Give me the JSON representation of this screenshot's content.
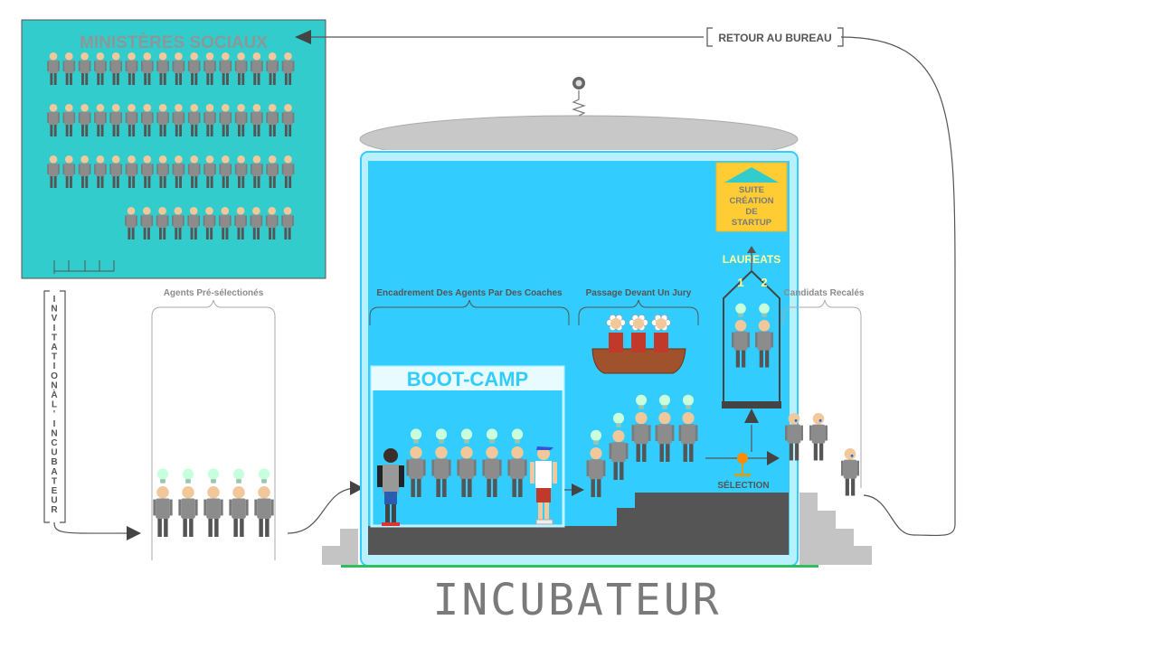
{
  "ministry": {
    "title": "MINISTÈRES SOCIAUX",
    "color": "#33cccc"
  },
  "return_label": "RETOUR AU BUREAU",
  "invitation_label": "INVITATIONÀL'INCUBATEUR",
  "preselected_label": "Agents Pré-sélectionés",
  "coaching_label": "Encadrement Des Agents Par Des Coaches",
  "jury_label": "Passage Devant Un Jury",
  "rejected_label": "Candidats Recalés",
  "bootcamp_label": "BOOT-CAMP",
  "startup_box": {
    "line1": "SUITE",
    "line2": "CRÉATION",
    "line3": "DE",
    "line4": "STARTUP",
    "color": "#ffcc33"
  },
  "laureates": {
    "title": "LAUREATS",
    "first": "1",
    "second": "2"
  },
  "selection_label": "SÉLECTION",
  "incubator_title": "INCUBATEUR",
  "colors": {
    "incubator_blue": "#33ccff",
    "agent_gray": "#8c8c8c",
    "skin": "#f2c89b",
    "bulb": "#c8ffdc",
    "stairs": "#555555"
  }
}
